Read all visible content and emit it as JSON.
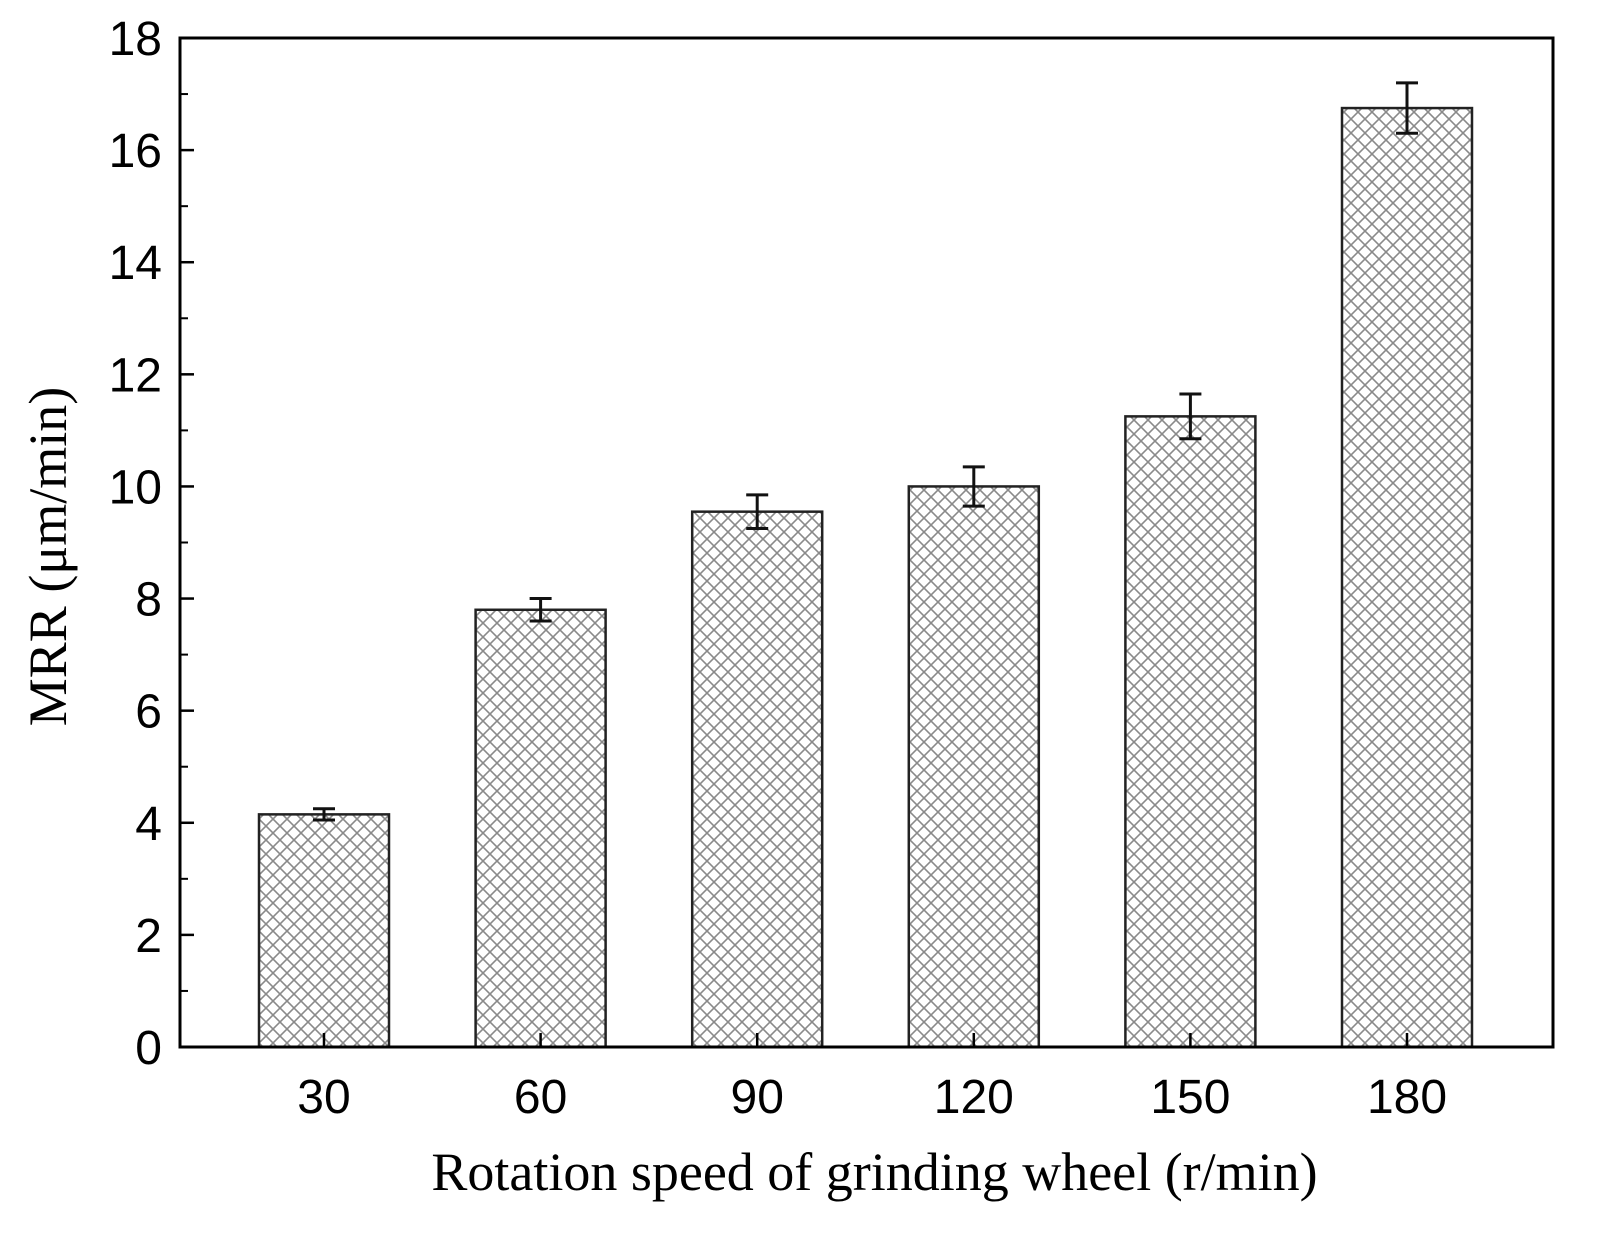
{
  "chart_data": {
    "type": "bar",
    "title": "",
    "xlabel": "Rotation speed of grinding wheel (r/min)",
    "ylabel": "MRR  (μm/min)",
    "categories": [
      "30",
      "60",
      "90",
      "120",
      "150",
      "180"
    ],
    "series": [
      {
        "name": "MRR",
        "values": [
          4.15,
          7.8,
          9.55,
          10.0,
          11.25,
          16.75
        ],
        "error": [
          0.1,
          0.2,
          0.3,
          0.35,
          0.4,
          0.45
        ]
      }
    ],
    "ylim": [
      0,
      18
    ],
    "yticks": [
      0,
      2,
      4,
      6,
      8,
      10,
      12,
      14,
      16,
      18
    ],
    "grid": false,
    "bar_fill": "crosshatch",
    "colors": {
      "bar_stroke": "#222222",
      "hatch": "#8a8a8a",
      "axis": "#000000"
    }
  }
}
